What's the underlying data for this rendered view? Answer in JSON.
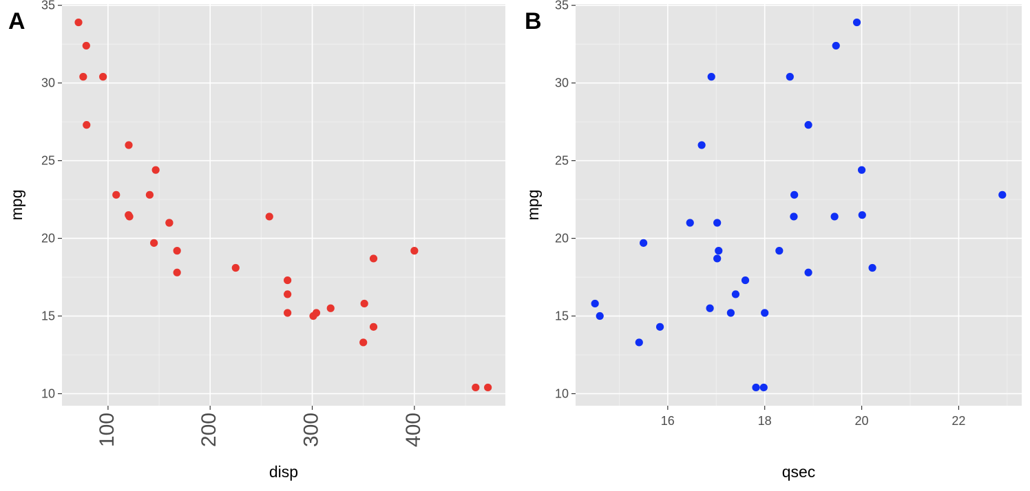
{
  "chart_data": [
    {
      "type": "scatter",
      "panel_tag": "A",
      "xlabel": "disp",
      "ylabel": "mpg",
      "xlim": [
        54.9,
        489.1
      ],
      "ylim": [
        9.225,
        35.075
      ],
      "x_ticks": [
        100,
        200,
        300,
        400
      ],
      "x_tick_labels": [
        "100",
        "200",
        "300",
        "400"
      ],
      "x_minor": [
        50,
        150,
        250,
        350,
        450
      ],
      "x_tick_labels_rotated": true,
      "y_ticks": [
        10,
        15,
        20,
        25,
        30,
        35
      ],
      "y_tick_labels": [
        "10",
        "15",
        "20",
        "25",
        "30",
        "35"
      ],
      "y_minor": [
        12.5,
        17.5,
        22.5,
        27.5,
        32.5
      ],
      "grid": true,
      "point_color": "#e8352e",
      "x": [
        160,
        160,
        108,
        258,
        360,
        225,
        360,
        146.7,
        140.8,
        167.6,
        167.6,
        275.8,
        275.8,
        275.8,
        472,
        460,
        78.7,
        75.7,
        71.1,
        120.1,
        318,
        304,
        350,
        400,
        79,
        120.3,
        95.1,
        351,
        145,
        301,
        121
      ],
      "y": [
        21.0,
        21.0,
        22.8,
        21.4,
        18.7,
        18.1,
        14.3,
        24.4,
        22.8,
        19.2,
        17.8,
        16.4,
        17.3,
        15.2,
        10.4,
        10.4,
        32.4,
        30.4,
        33.9,
        21.5,
        15.5,
        15.2,
        13.3,
        19.2,
        27.3,
        26.0,
        30.4,
        15.8,
        19.7,
        15.0,
        21.4
      ]
    },
    {
      "type": "scatter",
      "panel_tag": "B",
      "xlabel": "qsec",
      "ylabel": "mpg",
      "xlim": [
        14.1,
        23.3
      ],
      "ylim": [
        9.225,
        35.075
      ],
      "x_ticks": [
        16,
        18,
        20,
        22
      ],
      "x_tick_labels": [
        "16",
        "18",
        "20",
        "22"
      ],
      "x_minor": [
        15,
        17,
        19,
        21,
        23
      ],
      "x_tick_labels_rotated": false,
      "y_ticks": [
        10,
        15,
        20,
        25,
        30,
        35
      ],
      "y_tick_labels": [
        "10",
        "15",
        "20",
        "25",
        "30",
        "35"
      ],
      "y_minor": [
        12.5,
        17.5,
        22.5,
        27.5,
        32.5
      ],
      "grid": true,
      "point_color": "#0f2ff5",
      "x": [
        16.46,
        17.02,
        18.61,
        19.44,
        17.02,
        20.22,
        15.84,
        20.0,
        22.9,
        18.3,
        18.9,
        17.4,
        17.6,
        18.0,
        17.98,
        17.82,
        19.47,
        18.52,
        19.9,
        20.01,
        16.87,
        17.3,
        15.41,
        17.05,
        18.9,
        16.7,
        16.9,
        14.5,
        15.5,
        14.6,
        18.6
      ],
      "y": [
        21.0,
        21.0,
        22.8,
        21.4,
        18.7,
        18.1,
        14.3,
        24.4,
        22.8,
        19.2,
        17.8,
        16.4,
        17.3,
        15.2,
        10.4,
        10.4,
        32.4,
        30.4,
        33.9,
        21.5,
        15.5,
        15.2,
        13.3,
        19.2,
        27.3,
        26.0,
        30.4,
        15.8,
        19.7,
        15.0,
        21.4
      ]
    }
  ]
}
